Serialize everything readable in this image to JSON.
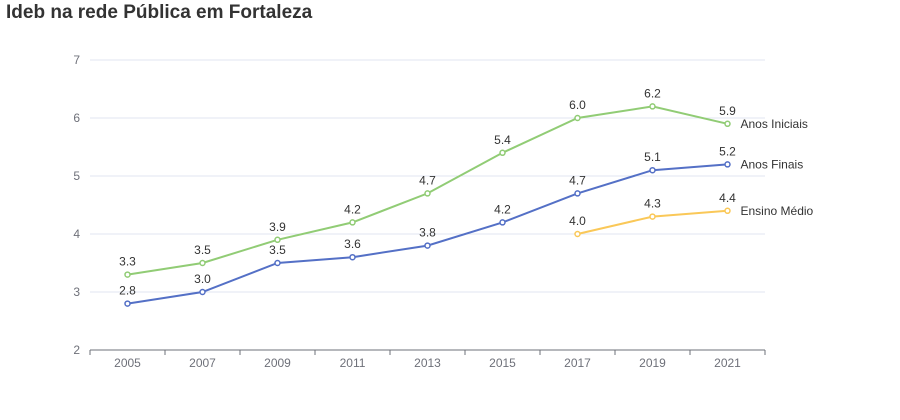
{
  "chart_data": {
    "type": "line",
    "title": "Ideb na rede Pública em Fortaleza",
    "xlabel": "",
    "ylabel": "",
    "categories": [
      "2005",
      "2007",
      "2009",
      "2011",
      "2013",
      "2015",
      "2017",
      "2019",
      "2021"
    ],
    "ylim": [
      2,
      7
    ],
    "yticks": [
      "2",
      "3",
      "4",
      "5",
      "6",
      "7"
    ],
    "grid": true,
    "series": [
      {
        "name": "Anos Iniciais",
        "color": "#91cc75",
        "values": [
          3.3,
          3.5,
          3.9,
          4.2,
          4.7,
          5.4,
          6.0,
          6.2,
          5.9
        ],
        "labels": [
          "3.3",
          "3.5",
          "3.9",
          "4.2",
          "4.7",
          "5.4",
          "6.0",
          "6.2",
          "5.9"
        ]
      },
      {
        "name": "Anos Finais",
        "color": "#5470c6",
        "values": [
          2.8,
          3.0,
          3.5,
          3.6,
          3.8,
          4.2,
          4.7,
          5.1,
          5.2
        ],
        "labels": [
          "2.8",
          "3.0",
          "3.5",
          "3.6",
          "3.8",
          "4.2",
          "4.7",
          "5.1",
          "5.2"
        ]
      },
      {
        "name": "Ensino Médio",
        "color": "#fac858",
        "values": [
          null,
          null,
          null,
          null,
          null,
          null,
          4.0,
          4.3,
          4.4
        ],
        "labels": [
          null,
          null,
          null,
          null,
          null,
          null,
          "4.0",
          "4.3",
          "4.4"
        ]
      }
    ],
    "legend": "end-of-line labels"
  }
}
